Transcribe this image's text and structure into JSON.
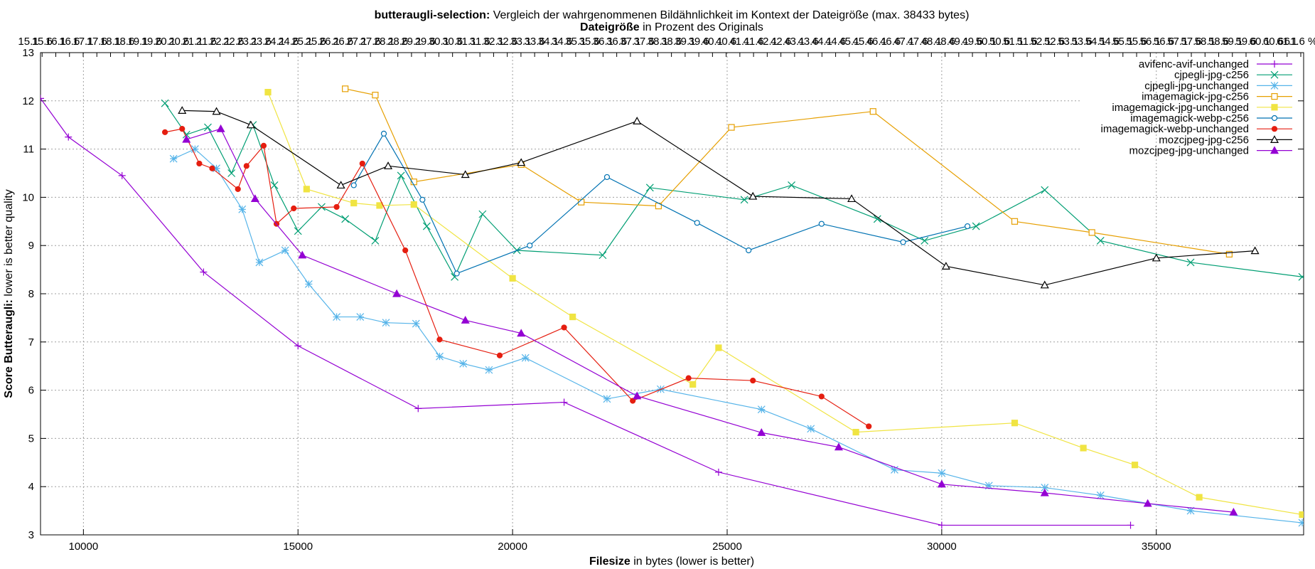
{
  "chart_data": {
    "type": "line",
    "title_bold": "butteraugli-selection:",
    "title_rest": " Vergleich der wahrgenommenen Bildähnlichkeit im Kontext der Dateigröße (max. 38433 bytes)",
    "subtitle_bold": "Dateigröße",
    "subtitle_rest": " in Prozent des Originals",
    "xlabel_bold": "Filesize",
    "xlabel_rest": " in bytes (lower is better)",
    "ylabel_bold": "Score Butteraugli:",
    "ylabel_rest": " lower is better quality",
    "xlim": [
      9000,
      38433
    ],
    "ylim": [
      3,
      13
    ],
    "x_ticks": [
      10000,
      15000,
      20000,
      25000,
      30000,
      35000
    ],
    "y_ticks": [
      3,
      4,
      5,
      6,
      7,
      8,
      9,
      10,
      11,
      12,
      13
    ],
    "x2_tick_labels": [
      "15.1",
      "15.6",
      "16.1",
      "16.6",
      "17.1",
      "17.6",
      "18.1",
      "18.6",
      "19.1",
      "19.6",
      "20.1",
      "20.6",
      "21.1",
      "21.6",
      "22.1",
      "22.6",
      "23.1",
      "23.6",
      "24.1",
      "24.6",
      "25.1",
      "25.6",
      "26.1",
      "26.6",
      "27.1",
      "27.6",
      "28.1",
      "28.6",
      "29.1",
      "29.6",
      "30.1",
      "30.6",
      "31.1",
      "31.6",
      "32.1",
      "32.6",
      "33.1",
      "33.6",
      "34.1",
      "34.6",
      "35.1",
      "35.6",
      "36.1",
      "36.6",
      "37.1",
      "37.6",
      "38.1",
      "38.6",
      "39.1",
      "39.6",
      "40.1",
      "40.6",
      "41.1",
      "41.6",
      "42.1",
      "42.6",
      "43.1",
      "43.6",
      "44.1",
      "44.6",
      "45.1",
      "45.6",
      "46.1",
      "46.6",
      "47.1",
      "47.6",
      "48.1",
      "48.6",
      "49.1",
      "49.6",
      "50.1",
      "50.6",
      "51.1",
      "51.6",
      "52.1",
      "52.6",
      "53.1",
      "53.6",
      "54.1",
      "54.6",
      "55.1",
      "55.6",
      "56.1",
      "56.6",
      "57.1",
      "57.6",
      "58.1",
      "58.6",
      "59.1",
      "59.6",
      "60.1",
      "60.6",
      "61.1",
      "61.6 %"
    ],
    "grid": true,
    "legend_position": "top-right",
    "series": [
      {
        "name": "avifenc-avif-unchanged",
        "color": "#9400d3",
        "marker": "plus",
        "points": [
          [
            9000,
            12.05
          ],
          [
            9650,
            11.25
          ],
          [
            10900,
            10.45
          ],
          [
            12800,
            8.45
          ],
          [
            15000,
            6.92
          ],
          [
            17800,
            5.62
          ],
          [
            21200,
            5.75
          ],
          [
            24800,
            4.3
          ],
          [
            30000,
            3.2
          ],
          [
            34400,
            3.2
          ]
        ]
      },
      {
        "name": "cjpegli-jpg-c256",
        "color": "#009e73",
        "marker": "cross",
        "points": [
          [
            11900,
            11.95
          ],
          [
            12400,
            11.3
          ],
          [
            12900,
            11.45
          ],
          [
            13450,
            10.5
          ],
          [
            13950,
            11.5
          ],
          [
            14450,
            10.25
          ],
          [
            15000,
            9.3
          ],
          [
            15550,
            9.8
          ],
          [
            16100,
            9.55
          ],
          [
            16800,
            9.1
          ],
          [
            17400,
            10.45
          ],
          [
            18000,
            9.4
          ],
          [
            18650,
            8.35
          ],
          [
            19300,
            9.65
          ],
          [
            20100,
            8.9
          ],
          [
            22100,
            8.8
          ],
          [
            23200,
            10.2
          ],
          [
            25400,
            9.95
          ],
          [
            26500,
            10.25
          ],
          [
            28500,
            9.55
          ],
          [
            29600,
            9.1
          ],
          [
            30800,
            9.4
          ],
          [
            32400,
            10.15
          ],
          [
            33700,
            9.1
          ],
          [
            35800,
            8.65
          ],
          [
            38400,
            8.35
          ]
        ]
      },
      {
        "name": "cjpegli-jpg-unchanged",
        "color": "#56b4e9",
        "marker": "star",
        "points": [
          [
            12100,
            10.8
          ],
          [
            12600,
            11.0
          ],
          [
            13100,
            10.6
          ],
          [
            13700,
            9.75
          ],
          [
            14100,
            8.65
          ],
          [
            14700,
            8.9
          ],
          [
            15250,
            8.2
          ],
          [
            15900,
            7.52
          ],
          [
            16450,
            7.52
          ],
          [
            17050,
            7.4
          ],
          [
            17750,
            7.38
          ],
          [
            18300,
            6.7
          ],
          [
            18850,
            6.55
          ],
          [
            19450,
            6.42
          ],
          [
            20300,
            6.67
          ],
          [
            22200,
            5.82
          ],
          [
            23450,
            6.02
          ],
          [
            25800,
            5.6
          ],
          [
            26950,
            5.2
          ],
          [
            28900,
            4.35
          ],
          [
            30000,
            4.28
          ],
          [
            31100,
            4.02
          ],
          [
            32400,
            3.98
          ],
          [
            33700,
            3.82
          ],
          [
            35800,
            3.5
          ],
          [
            38400,
            3.25
          ]
        ]
      },
      {
        "name": "imagemagick-jpg-c256",
        "color": "#e69f00",
        "marker": "square",
        "points": [
          [
            16100,
            12.25
          ],
          [
            16800,
            12.12
          ],
          [
            17700,
            10.32
          ],
          [
            20200,
            10.68
          ],
          [
            21600,
            9.9
          ],
          [
            23400,
            9.82
          ],
          [
            25100,
            11.45
          ],
          [
            28400,
            11.78
          ],
          [
            31700,
            9.5
          ],
          [
            33500,
            9.27
          ],
          [
            36700,
            8.82
          ]
        ]
      },
      {
        "name": "imagemagick-jpg-unchanged",
        "color": "#f0e442",
        "marker": "filled-square",
        "points": [
          [
            14300,
            12.18
          ],
          [
            15200,
            10.17
          ],
          [
            16300,
            9.88
          ],
          [
            16900,
            9.83
          ],
          [
            17700,
            9.85
          ],
          [
            20000,
            8.32
          ],
          [
            21400,
            7.52
          ],
          [
            24200,
            6.12
          ],
          [
            24800,
            6.88
          ],
          [
            28000,
            5.13
          ],
          [
            31700,
            5.32
          ],
          [
            33300,
            4.8
          ],
          [
            34500,
            4.45
          ],
          [
            36000,
            3.78
          ],
          [
            38400,
            3.42
          ]
        ]
      },
      {
        "name": "imagemagick-webp-c256",
        "color": "#0072b2",
        "marker": "circle",
        "points": [
          [
            16300,
            10.25
          ],
          [
            17000,
            11.32
          ],
          [
            17900,
            9.95
          ],
          [
            18700,
            8.42
          ],
          [
            20400,
            9.0
          ],
          [
            22200,
            10.42
          ],
          [
            24300,
            9.47
          ],
          [
            25500,
            8.9
          ],
          [
            27200,
            9.45
          ],
          [
            29100,
            9.07
          ],
          [
            30600,
            9.4
          ]
        ]
      },
      {
        "name": "imagemagick-webp-unchanged",
        "color": "#e51e10",
        "marker": "filled-circle",
        "points": [
          [
            11900,
            11.35
          ],
          [
            12300,
            11.42
          ],
          [
            12700,
            10.7
          ],
          [
            13000,
            10.6
          ],
          [
            13600,
            10.17
          ],
          [
            13800,
            10.65
          ],
          [
            14200,
            11.07
          ],
          [
            14500,
            9.45
          ],
          [
            14900,
            9.77
          ],
          [
            15900,
            9.8
          ],
          [
            16500,
            10.7
          ],
          [
            17500,
            8.9
          ],
          [
            18300,
            7.05
          ],
          [
            19700,
            6.72
          ],
          [
            21200,
            7.3
          ],
          [
            22800,
            5.78
          ],
          [
            24100,
            6.25
          ],
          [
            25600,
            6.2
          ],
          [
            27200,
            5.87
          ],
          [
            28300,
            5.25
          ]
        ]
      },
      {
        "name": "mozcjpeg-jpg-c256",
        "color": "#000000",
        "marker": "triangle",
        "points": [
          [
            12300,
            11.8
          ],
          [
            13100,
            11.78
          ],
          [
            13900,
            11.5
          ],
          [
            16000,
            10.25
          ],
          [
            17100,
            10.65
          ],
          [
            18900,
            10.47
          ],
          [
            20200,
            10.72
          ],
          [
            22900,
            11.58
          ],
          [
            25600,
            10.02
          ],
          [
            27900,
            9.97
          ],
          [
            30100,
            8.57
          ],
          [
            32400,
            8.18
          ],
          [
            35000,
            8.74
          ],
          [
            37300,
            8.89
          ]
        ]
      },
      {
        "name": "mozcjpeg-jpg-unchanged",
        "color": "#9400d3",
        "marker": "filled-triangle",
        "points": [
          [
            12400,
            11.2
          ],
          [
            13200,
            11.42
          ],
          [
            14000,
            9.97
          ],
          [
            15100,
            8.8
          ],
          [
            17300,
            8.0
          ],
          [
            18900,
            7.45
          ],
          [
            20200,
            7.18
          ],
          [
            22900,
            5.88
          ],
          [
            25800,
            5.12
          ],
          [
            27600,
            4.82
          ],
          [
            30000,
            4.05
          ],
          [
            32400,
            3.87
          ],
          [
            34800,
            3.65
          ],
          [
            36800,
            3.47
          ]
        ]
      }
    ]
  }
}
